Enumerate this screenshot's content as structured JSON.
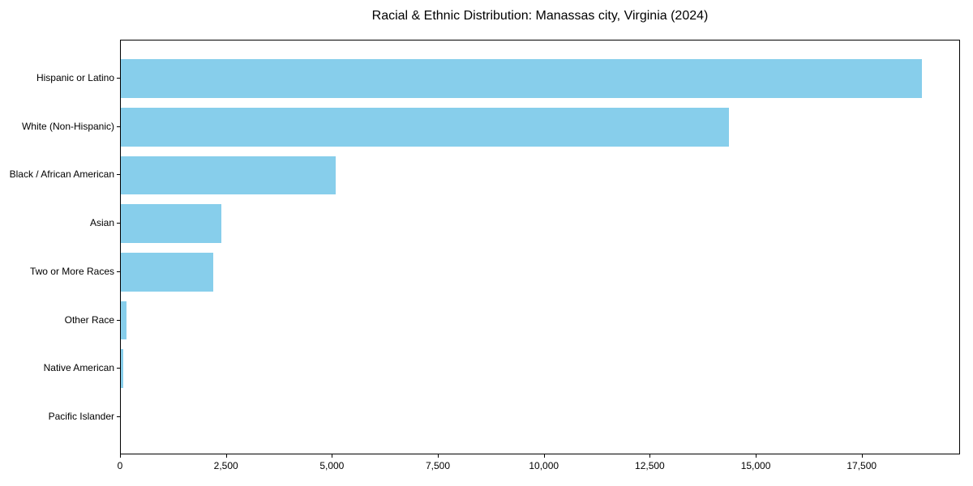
{
  "chart_data": {
    "type": "bar",
    "orientation": "horizontal",
    "title": "Racial & Ethnic Distribution: Manassas city, Virginia (2024)",
    "categories": [
      "Hispanic or Latino",
      "White (Non-Hispanic)",
      "Black / African American",
      "Asian",
      "Two or More Races",
      "Other Race",
      "Native American",
      "Pacific Islander"
    ],
    "values": [
      18900,
      14350,
      5070,
      2370,
      2180,
      140,
      55,
      0
    ],
    "xlabel": "",
    "ylabel": "",
    "xlim": [
      0,
      19820
    ],
    "xticks": [
      0,
      2500,
      5000,
      7500,
      10000,
      12500,
      15000,
      17500
    ],
    "xtick_labels": [
      "0",
      "2,500",
      "5,000",
      "7,500",
      "10,000",
      "12,500",
      "15,000",
      "17,500"
    ],
    "grid": false,
    "legend": false,
    "bar_color": "#87CEEB",
    "axis_color": "#000000",
    "text_color": "#000000",
    "background_color": "#FFFFFF"
  }
}
